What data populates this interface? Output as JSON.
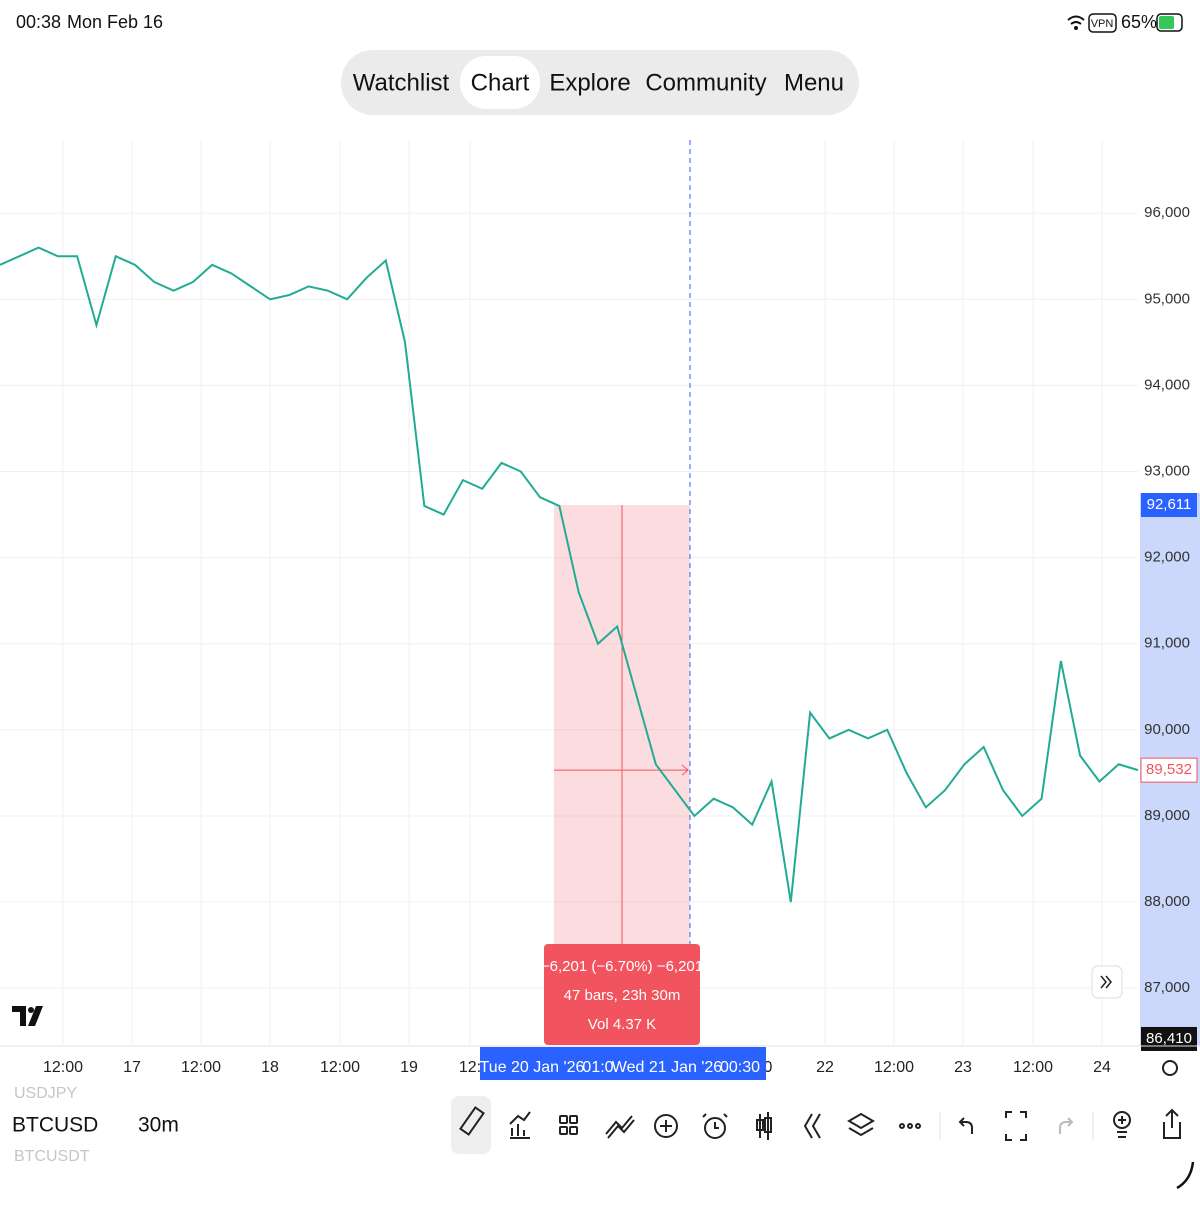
{
  "status_bar": {
    "time": "00:38",
    "date": "Mon Feb 16",
    "vpn": "VPN",
    "battery": "65%"
  },
  "nav": {
    "tabs": [
      "Watchlist",
      "Chart",
      "Explore",
      "Community",
      "Menu"
    ],
    "active": 1
  },
  "chart_data": {
    "type": "line",
    "color": "#22ab94",
    "values": [
      95400,
      95500,
      95600,
      95500,
      95500,
      94700,
      95500,
      95400,
      95200,
      95100,
      95200,
      95400,
      95300,
      95150,
      95000,
      95050,
      95150,
      95100,
      95000,
      95250,
      95450,
      94500,
      92600,
      92500,
      92900,
      92800,
      93100,
      93000,
      92700,
      92600,
      91600,
      91000,
      91200,
      90400,
      89600,
      89300,
      89000,
      89200,
      89100,
      88900,
      89400,
      88000,
      90200,
      89900,
      90000,
      89900,
      90000,
      89500,
      89100,
      89300,
      89600,
      89800,
      89300,
      89000,
      89200,
      90800,
      89700,
      89400,
      89600,
      89532
    ],
    "ylim": [
      86340,
      96850
    ],
    "yticks": [
      {
        "value": 87000,
        "label": "87,000"
      },
      {
        "value": 88000,
        "label": "88,000"
      },
      {
        "value": 89000,
        "label": "89,000"
      },
      {
        "value": 90000,
        "label": "90,000"
      },
      {
        "value": 91000,
        "label": "91,000"
      },
      {
        "value": 92000,
        "label": "92,000"
      },
      {
        "value": 93000,
        "label": "93,000"
      },
      {
        "value": 94000,
        "label": "94,000"
      },
      {
        "value": 95000,
        "label": "95,000"
      },
      {
        "value": 96000,
        "label": "96,000"
      }
    ],
    "price_labels": [
      {
        "value": 92611,
        "label": "92,611"
      },
      {
        "value": 89532,
        "label": "89,532"
      },
      {
        "value": 86410,
        "label": "86,410"
      }
    ],
    "x_labels": [
      "12:00",
      "17",
      "12:00",
      "18",
      "12:00",
      "19",
      "12:",
      "0",
      "22",
      "12:00",
      "23",
      "12:00",
      "24"
    ],
    "crosshair_labels": [
      "Tue 20 Jan '26",
      "01:0",
      "Wed 21 Jan '26",
      "00:30"
    ],
    "measure": [
      "−6,201 (−6.70%) −6,201",
      "47 bars, 23h 30m",
      "Vol 4.37 K"
    ],
    "grid": true
  },
  "toolbar": {
    "symbols": [
      "USDJPY",
      "BTCUSD",
      "BTCUSDT"
    ],
    "interval": "30m"
  }
}
